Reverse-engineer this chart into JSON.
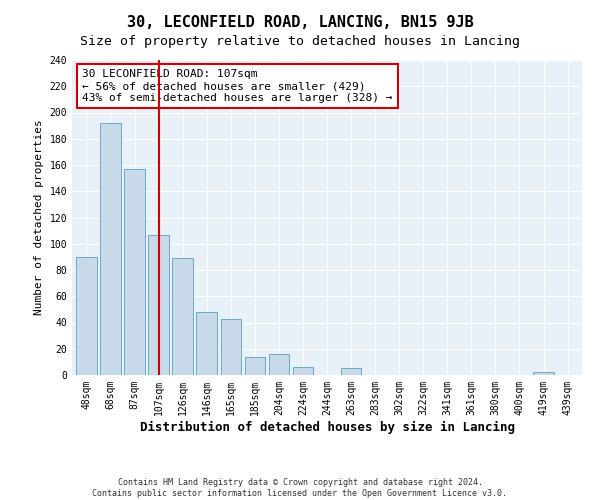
{
  "title": "30, LECONFIELD ROAD, LANCING, BN15 9JB",
  "subtitle": "Size of property relative to detached houses in Lancing",
  "xlabel": "Distribution of detached houses by size in Lancing",
  "ylabel": "Number of detached properties",
  "categories": [
    "48sqm",
    "68sqm",
    "87sqm",
    "107sqm",
    "126sqm",
    "146sqm",
    "165sqm",
    "185sqm",
    "204sqm",
    "224sqm",
    "244sqm",
    "263sqm",
    "283sqm",
    "302sqm",
    "322sqm",
    "341sqm",
    "361sqm",
    "380sqm",
    "400sqm",
    "419sqm",
    "439sqm"
  ],
  "values": [
    90,
    192,
    157,
    107,
    89,
    48,
    43,
    14,
    16,
    6,
    0,
    5,
    0,
    0,
    0,
    0,
    0,
    0,
    0,
    2,
    0
  ],
  "bar_color": "#c8daea",
  "bar_edge_color": "#6aaac8",
  "vline_x_index": 3,
  "vline_color": "#cc0000",
  "annotation_line1": "30 LECONFIELD ROAD: 107sqm",
  "annotation_line2": "← 56% of detached houses are smaller (429)",
  "annotation_line3": "43% of semi-detached houses are larger (328) →",
  "annotation_box_edgecolor": "#cc0000",
  "annotation_box_facecolor": "#ffffff",
  "ylim": [
    0,
    240
  ],
  "yticks": [
    0,
    20,
    40,
    60,
    80,
    100,
    120,
    140,
    160,
    180,
    200,
    220,
    240
  ],
  "footer_line1": "Contains HM Land Registry data © Crown copyright and database right 2024.",
  "footer_line2": "Contains public sector information licensed under the Open Government Licence v3.0.",
  "bg_color": "#ffffff",
  "plot_bg_color": "#e8f0f8",
  "grid_color": "#ffffff",
  "title_fontsize": 11,
  "subtitle_fontsize": 9.5,
  "xlabel_fontsize": 9,
  "ylabel_fontsize": 8,
  "tick_fontsize": 7,
  "annotation_fontsize": 8,
  "footer_fontsize": 6
}
